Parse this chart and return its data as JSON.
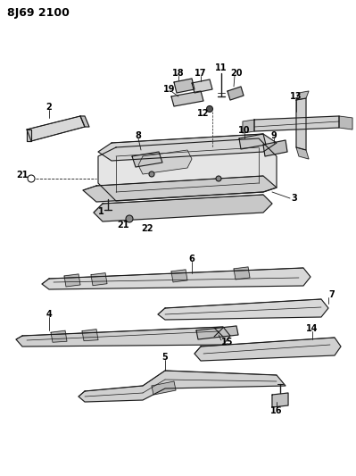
{
  "title": "8J69 2100",
  "bg_color": "#ffffff",
  "line_color": "#1a1a1a",
  "text_color": "#000000",
  "title_fontsize": 9,
  "label_fontsize": 7,
  "figsize": [
    3.99,
    5.33
  ],
  "dpi": 100
}
